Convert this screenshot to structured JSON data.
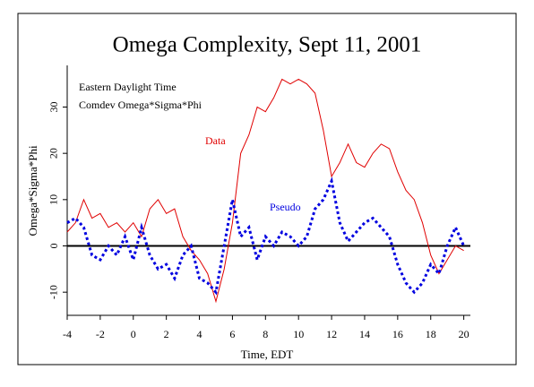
{
  "chart_data": {
    "type": "line",
    "title": "Omega Complexity, Sept 11, 2001",
    "xlabel": "Time, EDT",
    "ylabel": "Omega*Sigma*Phi",
    "annotations": [
      "Eastern Daylight Time",
      "Comdev Omega*Sigma*Phi"
    ],
    "x": [
      -4,
      -3.5,
      -3,
      -2.5,
      -2,
      -1.5,
      -1,
      -0.5,
      0,
      0.5,
      1,
      1.5,
      2,
      2.5,
      3,
      3.5,
      4,
      4.5,
      5,
      5.5,
      6,
      6.5,
      7,
      7.5,
      8,
      8.5,
      9,
      9.5,
      10,
      10.5,
      11,
      11.5,
      12,
      12.5,
      13,
      13.5,
      14,
      14.5,
      15,
      15.5,
      16,
      16.5,
      17,
      17.5,
      18,
      18.5,
      19,
      19.5,
      20
    ],
    "series": [
      {
        "name": "Data",
        "color": "#e00000",
        "style": "solid",
        "values": [
          3,
          5,
          10,
          6,
          7,
          4,
          5,
          3,
          5,
          2,
          8,
          10,
          7,
          8,
          2,
          -1,
          -3,
          -6,
          -12,
          -5,
          5,
          20,
          24,
          30,
          29,
          32,
          36,
          35,
          36,
          35,
          33,
          25,
          15,
          18,
          22,
          18,
          17,
          20,
          22,
          21,
          16,
          12,
          10,
          5,
          -2,
          -6,
          -3,
          0,
          -1
        ]
      },
      {
        "name": "Pseudo",
        "color": "#0000e0",
        "style": "dotted",
        "values": [
          5,
          6,
          4,
          -2,
          -3,
          0,
          -2,
          2,
          -3,
          4,
          -2,
          -5,
          -4,
          -7,
          -2,
          0,
          -7,
          -8,
          -10,
          0,
          10,
          2,
          4,
          -3,
          2,
          0,
          3,
          2,
          0,
          2,
          8,
          10,
          14,
          5,
          1,
          3,
          5,
          6,
          4,
          2,
          -4,
          -8,
          -10,
          -8,
          -4,
          -6,
          0,
          4,
          0
        ]
      }
    ],
    "xlim": [
      -4,
      20.4
    ],
    "ylim": [
      -15,
      39
    ],
    "xticks": [
      -4,
      -2,
      0,
      2,
      4,
      6,
      8,
      10,
      12,
      14,
      16,
      18,
      20
    ],
    "yticks": [
      -10,
      0,
      10,
      20,
      30
    ]
  }
}
